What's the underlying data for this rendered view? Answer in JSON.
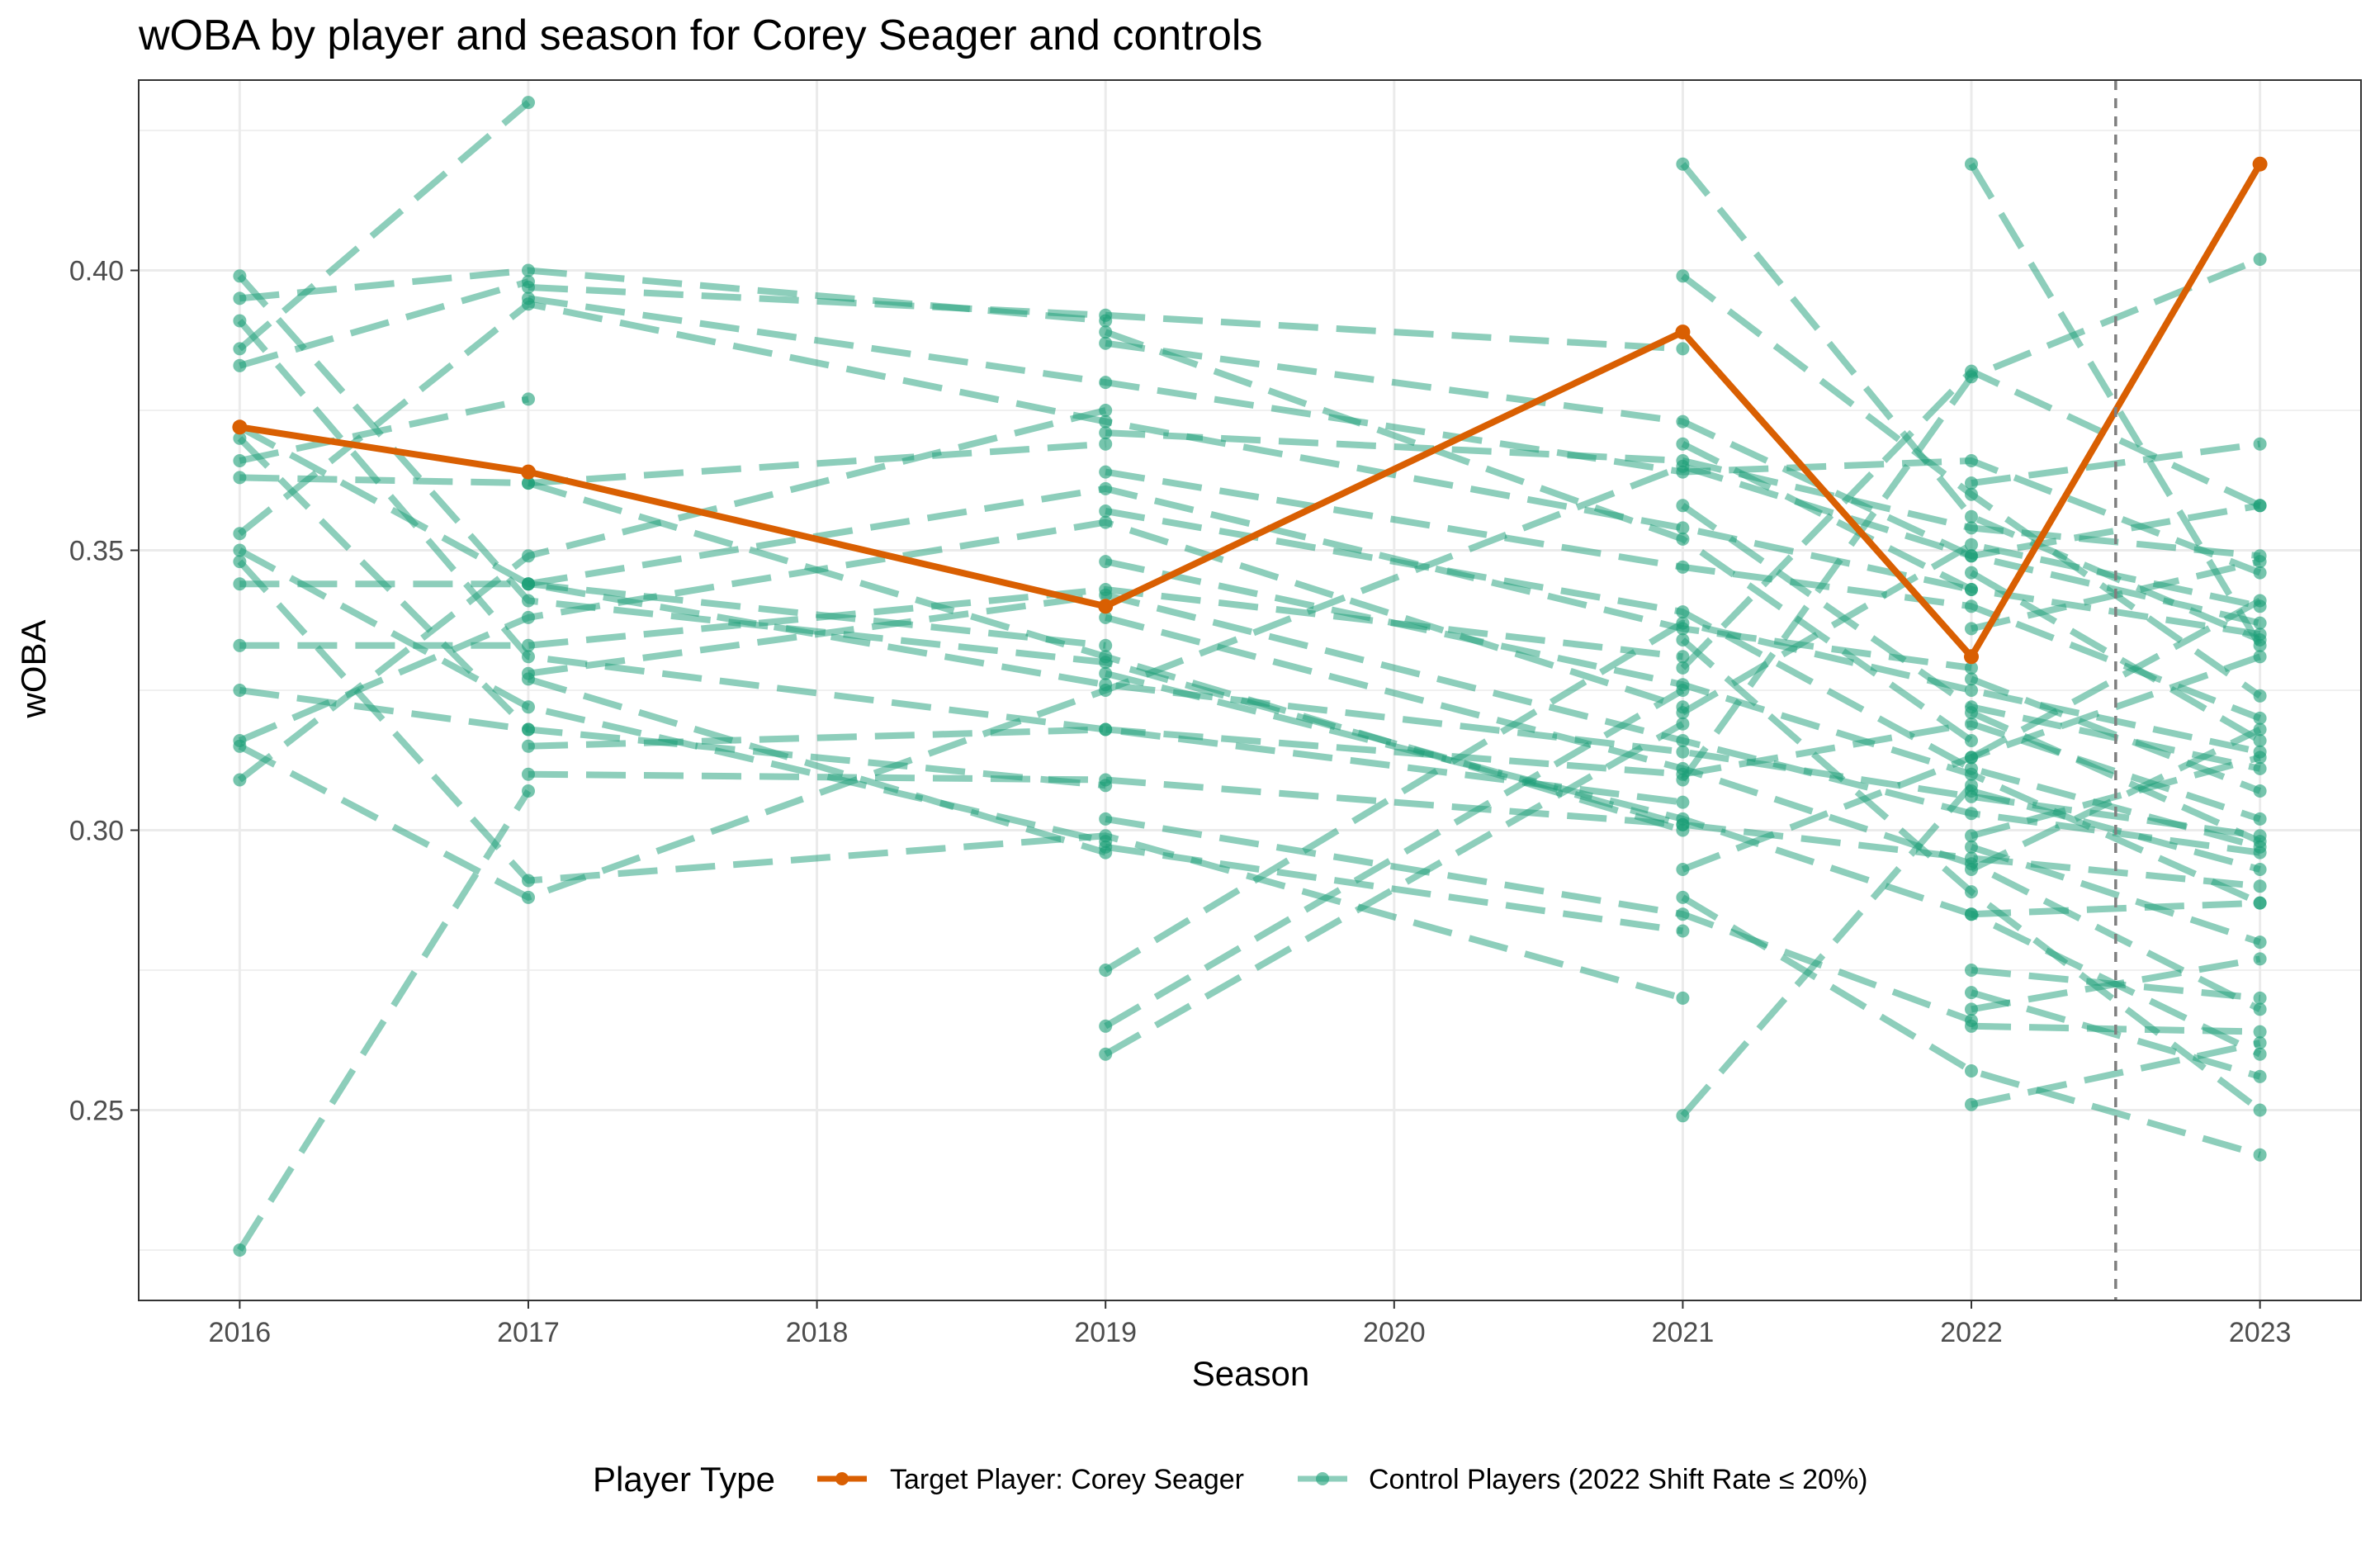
{
  "chart_data": {
    "type": "line",
    "title": "wOBA by player and season for Corey Seager and controls",
    "xlabel": "Season",
    "ylabel": "wOBA",
    "x_ticks": [
      "2016",
      "2017",
      "2018",
      "2019",
      "2020",
      "2021",
      "2022",
      "2023"
    ],
    "y_ticks": [
      "0.25",
      "0.30",
      "0.35",
      "0.40"
    ],
    "xlim": [
      2015.65,
      2023.35
    ],
    "ylim": [
      0.216,
      0.434
    ],
    "grid": true,
    "vline": 2022.5,
    "legend": {
      "title": "Player Type",
      "position": "bottom",
      "entries": [
        "Target Player: Corey Seager",
        "Control Players (2022 Shift Rate ≤ 20%)"
      ]
    },
    "colors": {
      "target": "#d95f02",
      "control": "#1b9e77",
      "vline": "#7f7f7f"
    },
    "series": [
      {
        "name": "Target Player: Corey Seager",
        "role": "target",
        "x": [
          2016,
          2017,
          2019,
          2021,
          2022,
          2023
        ],
        "y": [
          0.372,
          0.364,
          0.34,
          0.389,
          0.331,
          0.419
        ]
      },
      {
        "role": "control",
        "x": [
          2016,
          2017
        ],
        "y": [
          0.225,
          0.307
        ]
      },
      {
        "role": "control",
        "x": [
          2016,
          2017,
          2019,
          2021,
          2022,
          2023
        ],
        "y": [
          0.399,
          0.341,
          0.33,
          0.301,
          0.295,
          0.29
        ]
      },
      {
        "role": "control",
        "x": [
          2016,
          2017,
          2019
        ],
        "y": [
          0.395,
          0.4,
          0.391
        ]
      },
      {
        "role": "control",
        "x": [
          2016,
          2017,
          2019,
          2021
        ],
        "y": [
          0.391,
          0.331,
          0.318,
          0.305
        ]
      },
      {
        "role": "control",
        "x": [
          2016,
          2017
        ],
        "y": [
          0.386,
          0.43
        ]
      },
      {
        "role": "control",
        "x": [
          2016,
          2017
        ],
        "y": [
          0.383,
          0.398
        ]
      },
      {
        "role": "control",
        "x": [
          2016,
          2017,
          2019,
          2021,
          2022,
          2023
        ],
        "y": [
          0.372,
          0.344,
          0.326,
          0.314,
          0.306,
          0.299
        ]
      },
      {
        "role": "control",
        "x": [
          2016,
          2017,
          2019
        ],
        "y": [
          0.37,
          0.318,
          0.308
        ]
      },
      {
        "role": "control",
        "x": [
          2016,
          2017
        ],
        "y": [
          0.366,
          0.377
        ]
      },
      {
        "role": "control",
        "x": [
          2016,
          2017,
          2019
        ],
        "y": [
          0.363,
          0.362,
          0.369
        ]
      },
      {
        "role": "control",
        "x": [
          2016,
          2017,
          2019,
          2021,
          2022
        ],
        "y": [
          0.353,
          0.394,
          0.373,
          0.354,
          0.343
        ]
      },
      {
        "role": "control",
        "x": [
          2016,
          2017,
          2019
        ],
        "y": [
          0.35,
          0.322,
          0.298
        ]
      },
      {
        "role": "control",
        "x": [
          2016,
          2017,
          2019,
          2021
        ],
        "y": [
          0.348,
          0.291,
          0.299,
          0.27
        ]
      },
      {
        "role": "control",
        "x": [
          2016,
          2017,
          2019
        ],
        "y": [
          0.344,
          0.344,
          0.333
        ]
      },
      {
        "role": "control",
        "x": [
          2016,
          2017,
          2019,
          2021
        ],
        "y": [
          0.333,
          0.333,
          0.343,
          0.331
        ]
      },
      {
        "role": "control",
        "x": [
          2016,
          2017
        ],
        "y": [
          0.325,
          0.318
        ]
      },
      {
        "role": "control",
        "x": [
          2016,
          2017,
          2019,
          2021
        ],
        "y": [
          0.316,
          0.338,
          0.355,
          0.322
        ]
      },
      {
        "role": "control",
        "x": [
          2016,
          2017,
          2019,
          2021,
          2022,
          2023
        ],
        "y": [
          0.315,
          0.288,
          0.325,
          0.365,
          0.349,
          0.358
        ]
      },
      {
        "role": "control",
        "x": [
          2016,
          2017,
          2019
        ],
        "y": [
          0.309,
          0.349,
          0.375
        ]
      },
      {
        "role": "control",
        "x": [
          2017,
          2019,
          2021
        ],
        "y": [
          0.397,
          0.392,
          0.386
        ]
      },
      {
        "role": "control",
        "x": [
          2017,
          2019,
          2021,
          2022,
          2023
        ],
        "y": [
          0.395,
          0.38,
          0.364,
          0.366,
          0.346
        ]
      },
      {
        "role": "control",
        "x": [
          2017,
          2019,
          2021
        ],
        "y": [
          0.362,
          0.331,
          0.3
        ]
      },
      {
        "role": "control",
        "x": [
          2017,
          2019,
          2021,
          2022
        ],
        "y": [
          0.344,
          0.361,
          0.336,
          0.329
        ]
      },
      {
        "role": "control",
        "x": [
          2017,
          2019,
          2021,
          2022,
          2023
        ],
        "y": [
          0.328,
          0.342,
          0.316,
          0.303,
          0.296
        ]
      },
      {
        "role": "control",
        "x": [
          2017,
          2019,
          2021,
          2022,
          2023
        ],
        "y": [
          0.315,
          0.318,
          0.31,
          0.319,
          0.302
        ]
      },
      {
        "role": "control",
        "x": [
          2017,
          2019,
          2021
        ],
        "y": [
          0.31,
          0.309,
          0.301
        ]
      },
      {
        "role": "control",
        "x": [
          2017,
          2019
        ],
        "y": [
          0.327,
          0.296
        ]
      },
      {
        "role": "control",
        "x": [
          2019,
          2021,
          2022
        ],
        "y": [
          0.389,
          0.352,
          0.316
        ]
      },
      {
        "role": "control",
        "x": [
          2019,
          2021,
          2022,
          2023
        ],
        "y": [
          0.387,
          0.373,
          0.349,
          0.337
        ]
      },
      {
        "role": "control",
        "x": [
          2019,
          2021,
          2022,
          2023
        ],
        "y": [
          0.371,
          0.366,
          0.354,
          0.349
        ]
      },
      {
        "role": "control",
        "x": [
          2019,
          2021,
          2022,
          2023
        ],
        "y": [
          0.364,
          0.347,
          0.34,
          0.32
        ]
      },
      {
        "role": "control",
        "x": [
          2019,
          2021,
          2022,
          2023
        ],
        "y": [
          0.357,
          0.339,
          0.311,
          0.297
        ]
      },
      {
        "role": "control",
        "x": [
          2019,
          2021,
          2022,
          2023
        ],
        "y": [
          0.348,
          0.326,
          0.31,
          0.287
        ]
      },
      {
        "role": "control",
        "x": [
          2019,
          2021,
          2022,
          2023
        ],
        "y": [
          0.338,
          0.311,
          0.294,
          0.268
        ]
      },
      {
        "role": "control",
        "x": [
          2019,
          2021,
          2022,
          2023
        ],
        "y": [
          0.328,
          0.302,
          0.285,
          0.26
        ]
      },
      {
        "role": "control",
        "x": [
          2019,
          2021,
          2022
        ],
        "y": [
          0.302,
          0.285,
          0.266
        ]
      },
      {
        "role": "control",
        "x": [
          2019,
          2021
        ],
        "y": [
          0.297,
          0.282
        ]
      },
      {
        "role": "control",
        "x": [
          2019,
          2021,
          2022,
          2023
        ],
        "y": [
          0.275,
          0.337,
          0.325,
          0.314
        ]
      },
      {
        "role": "control",
        "x": [
          2019,
          2021
        ],
        "y": [
          0.265,
          0.325
        ]
      },
      {
        "role": "control",
        "x": [
          2019,
          2021
        ],
        "y": [
          0.26,
          0.319
        ]
      },
      {
        "role": "control",
        "x": [
          2021,
          2022,
          2023
        ],
        "y": [
          0.419,
          0.356,
          0.334
        ]
      },
      {
        "role": "control",
        "x": [
          2021,
          2022,
          2023
        ],
        "y": [
          0.399,
          0.36,
          0.324
        ]
      },
      {
        "role": "control",
        "x": [
          2021,
          2022,
          2023
        ],
        "y": [
          0.369,
          0.343,
          0.335
        ]
      },
      {
        "role": "control",
        "x": [
          2021,
          2022,
          2023
        ],
        "y": [
          0.358,
          0.322,
          0.311
        ]
      },
      {
        "role": "control",
        "x": [
          2021,
          2022,
          2023
        ],
        "y": [
          0.334,
          0.289,
          0.25
        ]
      },
      {
        "role": "control",
        "x": [
          2021,
          2022,
          2023
        ],
        "y": [
          0.321,
          0.351,
          0.34
        ]
      },
      {
        "role": "control",
        "x": [
          2021,
          2022,
          2023
        ],
        "y": [
          0.309,
          0.381,
          0.402
        ]
      },
      {
        "role": "control",
        "x": [
          2021,
          2022,
          2023
        ],
        "y": [
          0.293,
          0.313,
          0.331
        ]
      },
      {
        "role": "control",
        "x": [
          2021,
          2022,
          2023
        ],
        "y": [
          0.288,
          0.257,
          0.242
        ]
      },
      {
        "role": "control",
        "x": [
          2021,
          2022
        ],
        "y": [
          0.249,
          0.308
        ]
      },
      {
        "role": "control",
        "x": [
          2021,
          2022,
          2023
        ],
        "y": [
          0.329,
          0.382,
          0.358
        ]
      },
      {
        "role": "control",
        "x": [
          2022,
          2023
        ],
        "y": [
          0.419,
          0.333
        ]
      },
      {
        "role": "control",
        "x": [
          2022,
          2023
        ],
        "y": [
          0.362,
          0.369
        ]
      },
      {
        "role": "control",
        "x": [
          2022,
          2023
        ],
        "y": [
          0.346,
          0.316
        ]
      },
      {
        "role": "control",
        "x": [
          2022,
          2023
        ],
        "y": [
          0.336,
          0.348
        ]
      },
      {
        "role": "control",
        "x": [
          2022,
          2023
        ],
        "y": [
          0.327,
          0.307
        ]
      },
      {
        "role": "control",
        "x": [
          2022,
          2023
        ],
        "y": [
          0.321,
          0.298
        ]
      },
      {
        "role": "control",
        "x": [
          2022,
          2023
        ],
        "y": [
          0.299,
          0.313
        ]
      },
      {
        "role": "control",
        "x": [
          2022,
          2023
        ],
        "y": [
          0.297,
          0.28
        ]
      },
      {
        "role": "control",
        "x": [
          2022,
          2023
        ],
        "y": [
          0.285,
          0.287
        ]
      },
      {
        "role": "control",
        "x": [
          2022,
          2023
        ],
        "y": [
          0.275,
          0.27
        ]
      },
      {
        "role": "control",
        "x": [
          2022,
          2023
        ],
        "y": [
          0.271,
          0.256
        ]
      },
      {
        "role": "control",
        "x": [
          2022,
          2023
        ],
        "y": [
          0.268,
          0.277
        ]
      },
      {
        "role": "control",
        "x": [
          2022,
          2023
        ],
        "y": [
          0.265,
          0.264
        ]
      },
      {
        "role": "control",
        "x": [
          2022,
          2023
        ],
        "y": [
          0.251,
          0.262
        ]
      },
      {
        "role": "control",
        "x": [
          2022,
          2023
        ],
        "y": [
          0.293,
          0.318
        ]
      },
      {
        "role": "control",
        "x": [
          2022,
          2023
        ],
        "y": [
          0.307,
          0.293
        ]
      },
      {
        "role": "control",
        "x": [
          2022,
          2023
        ],
        "y": [
          0.313,
          0.341
        ]
      }
    ]
  }
}
